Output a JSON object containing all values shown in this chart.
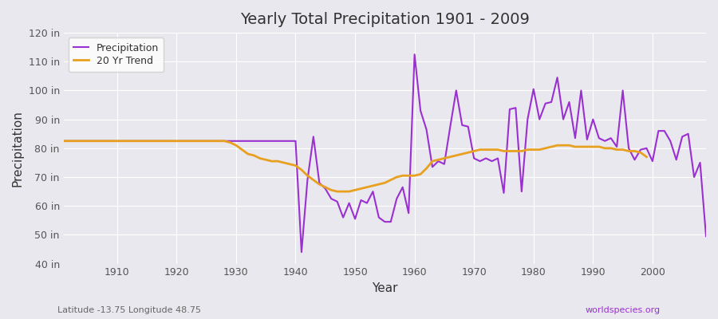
{
  "title": "Yearly Total Precipitation 1901 - 2009",
  "xlabel": "Year",
  "ylabel": "Precipitation",
  "subtitle_left": "Latitude -13.75 Longitude 48.75",
  "subtitle_right": "worldspecies.org",
  "ylim": [
    40,
    120
  ],
  "yticks": [
    40,
    50,
    60,
    70,
    80,
    90,
    100,
    110,
    120
  ],
  "ytick_labels": [
    "40 in",
    "50 in",
    "60 in",
    "70 in",
    "80 in",
    "90 in",
    "100 in",
    "110 in",
    "120 in"
  ],
  "bg_color": "#e8e8ee",
  "plot_bg_color": "#e8e8ee",
  "precip_color": "#9b30d0",
  "trend_color": "#e8a020",
  "precip_linewidth": 1.5,
  "trend_linewidth": 2.0,
  "years": [
    1901,
    1902,
    1903,
    1904,
    1905,
    1906,
    1907,
    1908,
    1909,
    1910,
    1911,
    1912,
    1913,
    1914,
    1915,
    1916,
    1917,
    1918,
    1919,
    1920,
    1921,
    1922,
    1923,
    1924,
    1925,
    1926,
    1927,
    1928,
    1929,
    1930,
    1931,
    1932,
    1933,
    1934,
    1935,
    1936,
    1937,
    1938,
    1939,
    1940,
    1941,
    1942,
    1943,
    1944,
    1945,
    1946,
    1947,
    1948,
    1949,
    1950,
    1951,
    1952,
    1953,
    1954,
    1955,
    1956,
    1957,
    1958,
    1959,
    1960,
    1961,
    1962,
    1963,
    1964,
    1965,
    1966,
    1967,
    1968,
    1969,
    1970,
    1971,
    1972,
    1973,
    1974,
    1975,
    1976,
    1977,
    1978,
    1979,
    1980,
    1981,
    1982,
    1983,
    1984,
    1985,
    1986,
    1987,
    1988,
    1989,
    1990,
    1991,
    1992,
    1993,
    1994,
    1995,
    1996,
    1997,
    1998,
    1999,
    2000,
    2001,
    2002,
    2003,
    2004,
    2005,
    2006,
    2007,
    2008,
    2009
  ],
  "precip": [
    82.5,
    82.5,
    82.5,
    82.5,
    82.5,
    82.5,
    82.5,
    82.5,
    82.5,
    82.5,
    82.5,
    82.5,
    82.5,
    82.5,
    82.5,
    82.5,
    82.5,
    82.5,
    82.5,
    82.5,
    82.5,
    82.5,
    82.5,
    82.5,
    82.5,
    82.5,
    82.5,
    82.5,
    82.5,
    82.5,
    82.5,
    82.5,
    82.5,
    82.5,
    82.5,
    82.5,
    82.5,
    82.5,
    82.5,
    82.5,
    44.0,
    69.0,
    84.0,
    68.0,
    66.0,
    62.5,
    61.5,
    56.0,
    61.0,
    55.5,
    62.0,
    61.0,
    65.0,
    56.0,
    54.5,
    54.5,
    62.5,
    66.5,
    57.5,
    112.5,
    93.0,
    86.5,
    73.5,
    75.5,
    74.5,
    87.5,
    100.0,
    88.0,
    87.5,
    76.5,
    75.5,
    76.5,
    75.5,
    76.5,
    64.5,
    93.5,
    94.0,
    65.0,
    90.0,
    100.5,
    90.0,
    95.5,
    96.0,
    104.5,
    90.0,
    96.0,
    83.5,
    100.0,
    83.0,
    90.0,
    83.5,
    82.5,
    83.5,
    80.5,
    100.0,
    80.0,
    76.0,
    79.5,
    80.0,
    75.5,
    86.0,
    86.0,
    82.5,
    76.0,
    84.0,
    85.0,
    70.0,
    75.0,
    49.5
  ],
  "trend": [
    82.5,
    82.5,
    82.5,
    82.5,
    82.5,
    82.5,
    82.5,
    82.5,
    82.5,
    82.5,
    82.5,
    82.5,
    82.5,
    82.5,
    82.5,
    82.5,
    82.5,
    82.5,
    82.5,
    82.5,
    82.5,
    82.5,
    82.5,
    82.5,
    82.5,
    82.5,
    82.5,
    82.5,
    82.0,
    81.0,
    79.5,
    78.0,
    77.5,
    76.5,
    76.0,
    75.5,
    75.5,
    75.0,
    74.5,
    74.0,
    72.5,
    70.5,
    69.0,
    67.5,
    66.5,
    65.5,
    65.0,
    65.0,
    65.0,
    65.5,
    66.0,
    66.5,
    67.0,
    67.5,
    68.0,
    69.0,
    70.0,
    70.5,
    70.5,
    70.5,
    71.0,
    73.0,
    75.5,
    76.0,
    76.5,
    77.0,
    77.5,
    78.0,
    78.5,
    79.0,
    79.5,
    79.5,
    79.5,
    79.5,
    79.0,
    79.0,
    79.0,
    79.0,
    79.5,
    79.5,
    79.5,
    80.0,
    80.5,
    81.0,
    81.0,
    81.0,
    80.5,
    80.5,
    80.5,
    80.5,
    80.5,
    80.0,
    80.0,
    79.5,
    79.5,
    79.0,
    79.0,
    78.5,
    77.0
  ]
}
